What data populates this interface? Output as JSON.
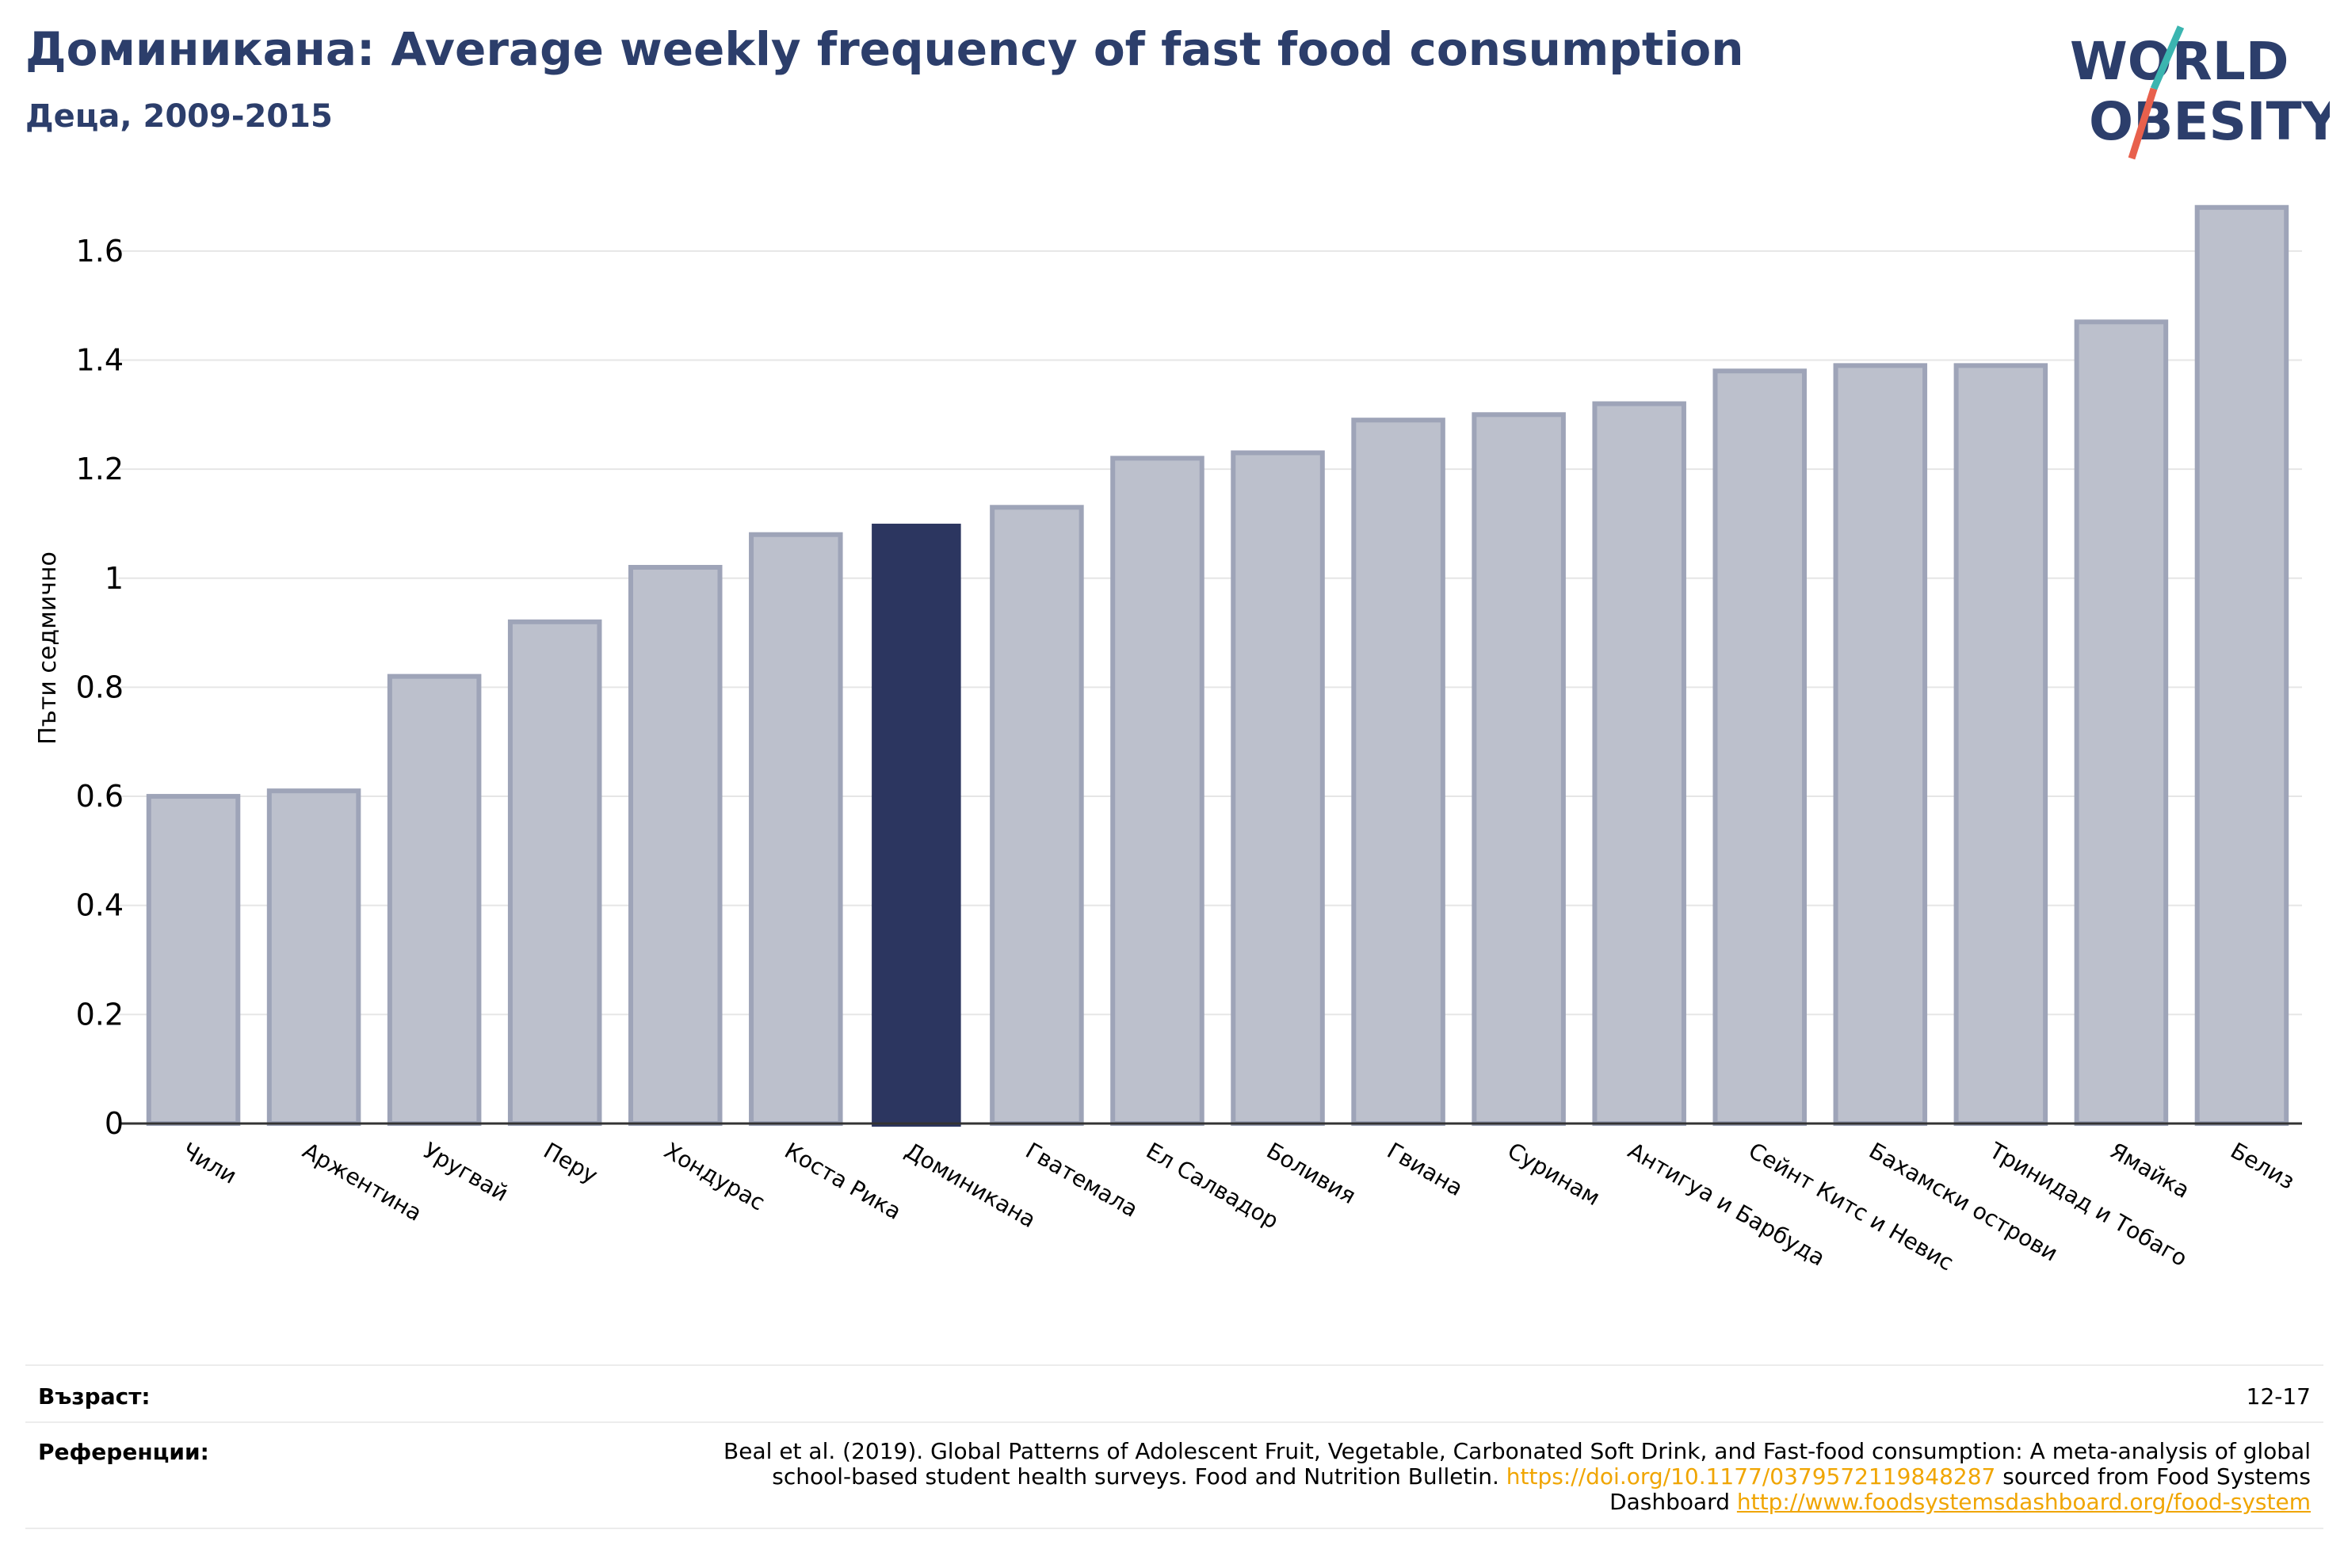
{
  "header": {
    "title": "Доминикана: Average weekly frequency of fast food consumption",
    "subtitle": "Деца, 2009-2015"
  },
  "logo": {
    "line1": "WORLD",
    "line2": "OBESITY",
    "colors": {
      "text": "#2c3e6b",
      "slash_top": "#3bb5b0",
      "slash_bottom": "#e8604c"
    }
  },
  "chart_data": {
    "type": "bar",
    "title": "",
    "ylabel": "Пъти седмично",
    "xlabel": "",
    "ylim": [
      0,
      1.7
    ],
    "yticks": [
      0,
      0.2,
      0.4,
      0.6,
      0.8,
      1,
      1.2,
      1.4,
      1.6
    ],
    "ytick_labels": [
      "0",
      "0.2",
      "0.4",
      "0.6",
      "0.8",
      "1",
      "1.2",
      "1.4",
      "1.6"
    ],
    "categories": [
      "Чили",
      "Аржентина",
      "Уругвай",
      "Перу",
      "Хондурас",
      "Коста Рика",
      "Доминикана",
      "Гватемала",
      "Ел Салвадор",
      "Боливия",
      "Гвиана",
      "Суринам",
      "Антигуа и Барбуда",
      "Сейнт Китс и Невис",
      "Бахамски острови",
      "Тринидад и Тобаго",
      "Ямайка",
      "Белиз"
    ],
    "values": [
      0.6,
      0.61,
      0.82,
      0.92,
      1.02,
      1.08,
      1.1,
      1.13,
      1.22,
      1.23,
      1.29,
      1.3,
      1.32,
      1.38,
      1.39,
      1.39,
      1.47,
      1.68
    ],
    "highlight": "Доминикана",
    "colors": {
      "bar": "#bcc0cc",
      "bar_edge": "#9ea4b8",
      "highlight": "#2c3660",
      "grid": "#e6e6e6",
      "axis": "#333333"
    },
    "grid": true
  },
  "info": {
    "age_label": "Възраст:",
    "age_value": "12-17",
    "ref_label": "Референции:",
    "ref_text_1": "Beal et al. (2019). Global Patterns of Adolescent Fruit, Vegetable, Carbonated Soft Drink, and Fast-food consumption: A meta-analysis of global school-based student health surveys. Food and Nutrition Bulletin. ",
    "ref_link_1": "https://doi.org/10.1177/0379572119848287",
    "ref_text_2": " sourced from Food Systems Dashboard ",
    "ref_link_2": "http://www.foodsystemsdashboard.org/food-system"
  }
}
